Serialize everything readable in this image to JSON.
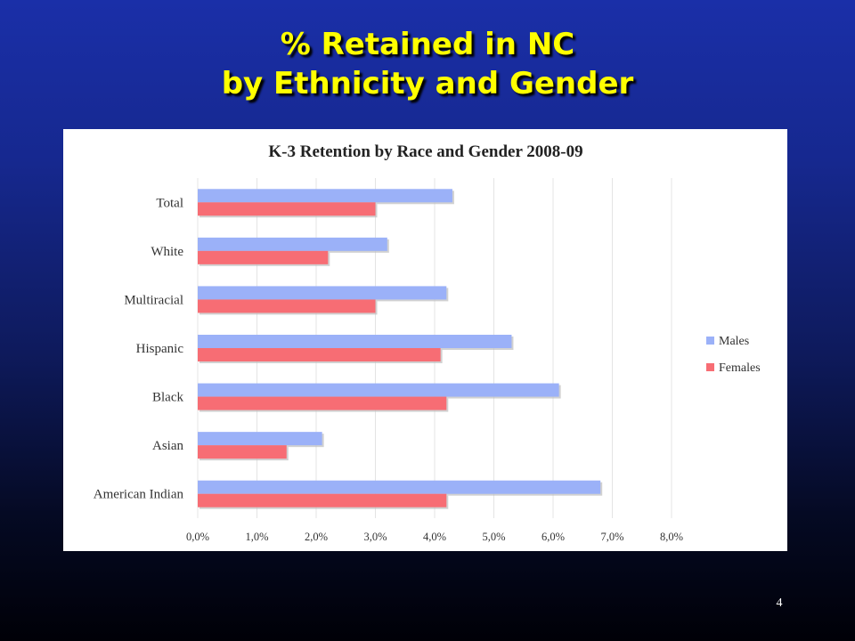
{
  "slide": {
    "title_line1": "% Retained in NC",
    "title_line2": "by Ethnicity and Gender",
    "page_number": "4"
  },
  "chart_data": {
    "type": "bar",
    "orientation": "horizontal",
    "title": "K-3 Retention by Race and Gender 2008-09",
    "categories": [
      "Total",
      "White",
      "Multiracial",
      "Hispanic",
      "Black",
      "Asian",
      "American Indian"
    ],
    "series": [
      {
        "name": "Males",
        "color": "#9bb1f8",
        "values": [
          4.3,
          3.2,
          4.2,
          5.3,
          6.1,
          2.1,
          6.8
        ]
      },
      {
        "name": "Females",
        "color": "#f76d74",
        "values": [
          3.0,
          2.2,
          3.0,
          4.1,
          4.2,
          1.5,
          4.2
        ]
      }
    ],
    "xlim": [
      0,
      8
    ],
    "xticks": [
      "0,0%",
      "1,0%",
      "2,0%",
      "3,0%",
      "4,0%",
      "5,0%",
      "6,0%",
      "7,0%",
      "8,0%"
    ],
    "grid": true,
    "legend_position": "right"
  }
}
